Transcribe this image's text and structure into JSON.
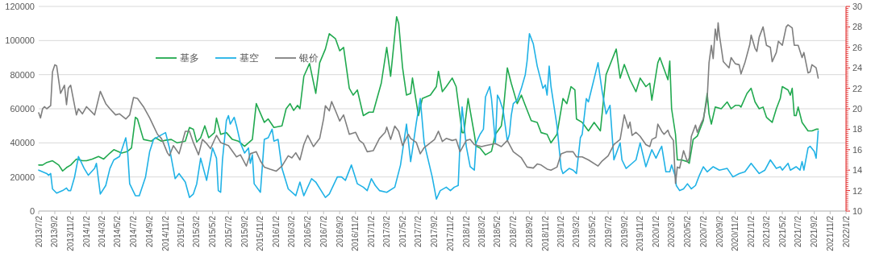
{
  "chart_data": {
    "type": "line",
    "xlim": [
      "2013-07-02",
      "2022-01-02"
    ],
    "xticks": [
      {
        "value": "2013-07-02",
        "label": "2013/7/2"
      },
      {
        "value": "2013-09-02",
        "label": "2013/9/2"
      },
      {
        "value": "2013-11-02",
        "label": "2013/11/2"
      },
      {
        "value": "2014-01-02",
        "label": "2014/1/2"
      },
      {
        "value": "2014-03-02",
        "label": "2014/3/2"
      },
      {
        "value": "2014-05-02",
        "label": "2014/5/2"
      },
      {
        "value": "2014-07-02",
        "label": "2014/7/2"
      },
      {
        "value": "2014-09-02",
        "label": "2014/9/2"
      },
      {
        "value": "2014-11-02",
        "label": "2014/11/2"
      },
      {
        "value": "2015-01-02",
        "label": "2015/1/2"
      },
      {
        "value": "2015-03-02",
        "label": "2015/3/2"
      },
      {
        "value": "2015-05-02",
        "label": "2015/5/2"
      },
      {
        "value": "2015-07-02",
        "label": "2015/7/2"
      },
      {
        "value": "2015-09-02",
        "label": "2015/9/2"
      },
      {
        "value": "2015-11-02",
        "label": "2015/11/2"
      },
      {
        "value": "2016-01-02",
        "label": "2016/1/2"
      },
      {
        "value": "2016-03-02",
        "label": "2016/3/2"
      },
      {
        "value": "2016-05-02",
        "label": "2016/5/2"
      },
      {
        "value": "2016-07-02",
        "label": "2016/7/2"
      },
      {
        "value": "2016-09-02",
        "label": "2016/9/2"
      },
      {
        "value": "2016-11-02",
        "label": "2016/11/2"
      },
      {
        "value": "2017-01-02",
        "label": "2017/1/2"
      },
      {
        "value": "2017-03-02",
        "label": "2017/3/2"
      },
      {
        "value": "2017-05-02",
        "label": "2017/5/2"
      },
      {
        "value": "2017-07-02",
        "label": "2017/7/2"
      },
      {
        "value": "2017-09-02",
        "label": "2017/9/2"
      },
      {
        "value": "2017-11-02",
        "label": "2017/11/2"
      },
      {
        "value": "2018-01-02",
        "label": "2018/1/2"
      },
      {
        "value": "2018-03-02",
        "label": "2018/3/2"
      },
      {
        "value": "2018-05-02",
        "label": "2018/5/2"
      },
      {
        "value": "2018-07-02",
        "label": "2018/7/2"
      },
      {
        "value": "2018-09-02",
        "label": "2018/9/2"
      },
      {
        "value": "2018-11-02",
        "label": "2018/11/2"
      },
      {
        "value": "2019-01-02",
        "label": "2019/1/2"
      },
      {
        "value": "2019-03-02",
        "label": "2019/3/2"
      },
      {
        "value": "2019-05-02",
        "label": "2019/5/2"
      },
      {
        "value": "2019-07-02",
        "label": "2019/7/2"
      },
      {
        "value": "2019-09-02",
        "label": "2019/9/2"
      },
      {
        "value": "2019-11-02",
        "label": "2019/11/2"
      },
      {
        "value": "2020-01-02",
        "label": "2020/1/2"
      },
      {
        "value": "2020-03-02",
        "label": "2020/3/2"
      },
      {
        "value": "2020-05-02",
        "label": "2020/5/2"
      },
      {
        "value": "2020-07-02",
        "label": "2020/7/2"
      },
      {
        "value": "2020-09-02",
        "label": "2020/9/2"
      },
      {
        "value": "2020-11-02",
        "label": "2020/11/2"
      },
      {
        "value": "2021-01-02",
        "label": "2021/1/2"
      },
      {
        "value": "2021-03-02",
        "label": "2021/3/2"
      },
      {
        "value": "2021-05-02",
        "label": "2021/5/2"
      },
      {
        "value": "2021-07-02",
        "label": "2021/7/2"
      },
      {
        "value": "2021-09-02",
        "label": "2021/9/2"
      },
      {
        "value": "2021-11-02",
        "label": "2021/11/2"
      },
      {
        "value": "2022-01-02",
        "label": "2022/1/2"
      }
    ],
    "ylim": [
      0,
      120000
    ],
    "yticks": [
      0,
      20000,
      40000,
      60000,
      80000,
      100000,
      120000
    ],
    "y2lim": [
      10,
      30
    ],
    "y2ticks": [
      10,
      12,
      14,
      16,
      18,
      20,
      22,
      24,
      26,
      28,
      30
    ],
    "grid": "y",
    "legend": "top left",
    "series": [
      {
        "name": "基多",
        "color": "#21a94f",
        "x": [
          "2013-07-02",
          "2013-07-17",
          "2013-08-02",
          "2013-08-24",
          "2013-09-17",
          "2013-10-02",
          "2013-10-17",
          "2013-11-02",
          "2013-11-24",
          "2013-12-17",
          "2014-01-02",
          "2014-01-24",
          "2014-02-17",
          "2014-03-09",
          "2014-04-02",
          "2014-04-17",
          "2014-05-17",
          "2014-06-09",
          "2014-06-24",
          "2014-07-09",
          "2014-07-17",
          "2014-08-09",
          "2014-09-09",
          "2014-09-24",
          "2014-10-17",
          "2014-11-02",
          "2014-11-24",
          "2014-12-17",
          "2015-01-17",
          "2015-02-02",
          "2015-02-17",
          "2015-03-02",
          "2015-03-17",
          "2015-04-02",
          "2015-04-17",
          "2015-05-09",
          "2015-05-17",
          "2015-06-02",
          "2015-06-24",
          "2015-07-17",
          "2015-08-09",
          "2015-09-02",
          "2015-10-02",
          "2015-10-17",
          "2015-11-17",
          "2015-12-02",
          "2015-12-24",
          "2016-01-24",
          "2016-02-09",
          "2016-02-24",
          "2016-03-09",
          "2016-03-24",
          "2016-04-02",
          "2016-04-17",
          "2016-05-09",
          "2016-06-02",
          "2016-06-17",
          "2016-07-09",
          "2016-07-24",
          "2016-08-17",
          "2016-09-02",
          "2016-09-17",
          "2016-10-09",
          "2016-10-24",
          "2016-11-09",
          "2016-12-02",
          "2016-12-24",
          "2017-01-09",
          "2017-02-09",
          "2017-03-02",
          "2017-03-17",
          "2017-04-09",
          "2017-04-17",
          "2017-05-02",
          "2017-05-17",
          "2017-06-02",
          "2017-06-09",
          "2017-07-02",
          "2017-07-17",
          "2017-08-17",
          "2017-09-09",
          "2017-09-17",
          "2017-10-02",
          "2017-10-17",
          "2017-11-09",
          "2017-11-24",
          "2017-12-17",
          "2017-12-24",
          "2018-01-09",
          "2018-02-02",
          "2018-02-09",
          "2018-02-24",
          "2018-03-17",
          "2018-04-09",
          "2018-04-24",
          "2018-05-17",
          "2018-05-24",
          "2018-06-09",
          "2018-06-24",
          "2018-07-17",
          "2018-08-02",
          "2018-08-17",
          "2018-09-09",
          "2018-10-02",
          "2018-10-17",
          "2018-11-09",
          "2018-11-24",
          "2018-12-17",
          "2019-01-09",
          "2019-01-24",
          "2019-02-09",
          "2019-02-24",
          "2019-03-02",
          "2019-03-24",
          "2019-04-17",
          "2019-05-09",
          "2019-06-02",
          "2019-06-24",
          "2019-08-02",
          "2019-08-17",
          "2019-09-02",
          "2019-09-24",
          "2019-10-17",
          "2019-11-02",
          "2019-11-24",
          "2019-12-09",
          "2019-12-17",
          "2020-01-09",
          "2020-01-17",
          "2020-02-17",
          "2020-02-24",
          "2020-03-02",
          "2020-03-17",
          "2020-03-24",
          "2020-04-09",
          "2020-05-02",
          "2020-05-09",
          "2020-05-24",
          "2020-06-09",
          "2020-07-02",
          "2020-07-17",
          "2020-07-24",
          "2020-08-02",
          "2020-08-17",
          "2020-09-09",
          "2020-10-02",
          "2020-10-17",
          "2020-11-02",
          "2020-11-17",
          "2020-11-24",
          "2020-12-17",
          "2021-01-02",
          "2021-01-17",
          "2021-02-02",
          "2021-02-17",
          "2021-03-02",
          "2021-03-24",
          "2021-04-09",
          "2021-04-24",
          "2021-05-02",
          "2021-05-24",
          "2021-06-02",
          "2021-06-09",
          "2021-06-17",
          "2021-06-24",
          "2021-07-02",
          "2021-07-17",
          "2021-08-09",
          "2021-08-24",
          "2021-09-09",
          "2021-09-17"
        ],
        "values": [
          27000,
          27000,
          28500,
          29500,
          27000,
          23500,
          25500,
          27000,
          30500,
          29500,
          29500,
          30500,
          32000,
          30500,
          34000,
          36000,
          34000,
          35000,
          37000,
          55000,
          54000,
          42000,
          41000,
          43000,
          41000,
          41500,
          42000,
          40000,
          41000,
          49000,
          48000,
          40500,
          43000,
          50000,
          43000,
          46000,
          54500,
          45000,
          46000,
          42000,
          41000,
          38000,
          42000,
          63000,
          52000,
          54000,
          49000,
          50000,
          60000,
          63000,
          59000,
          62000,
          60000,
          79000,
          86500,
          69000,
          87000,
          95000,
          104000,
          101000,
          94000,
          96000,
          72000,
          68000,
          71000,
          56000,
          58000,
          58000,
          75000,
          96000,
          79000,
          114000,
          110000,
          84000,
          68000,
          69000,
          78000,
          56000,
          66000,
          68000,
          73000,
          82000,
          70000,
          73000,
          78000,
          73000,
          46000,
          46000,
          66000,
          45000,
          38000,
          37000,
          33000,
          35000,
          45000,
          50000,
          58000,
          84000,
          75000,
          63000,
          68000,
          62000,
          53000,
          52000,
          46000,
          45000,
          40000,
          45000,
          66000,
          63000,
          73000,
          71000,
          54000,
          52000,
          47000,
          52000,
          47000,
          80000,
          95000,
          78000,
          86000,
          77000,
          70000,
          78000,
          73000,
          75000,
          65000,
          87000,
          90000,
          77000,
          88000,
          60000,
          45000,
          30000,
          30000,
          29000,
          28000,
          42000,
          44000,
          53000,
          69000,
          57000,
          51000,
          61000,
          60000,
          64000,
          60000,
          62000,
          62000,
          61000,
          69000,
          72000,
          64000,
          60000,
          61000,
          55000,
          52000,
          60000,
          66000,
          73000,
          71000,
          68000,
          72000,
          56000,
          56000,
          61000,
          52000,
          47000,
          47000,
          48000,
          48000
        ]
      },
      {
        "name": "基空",
        "color": "#20b2e6",
        "x": [
          "2013-07-02",
          "2013-08-02",
          "2013-08-09",
          "2013-08-17",
          "2013-08-24",
          "2013-09-09",
          "2013-10-02",
          "2013-10-17",
          "2013-10-24",
          "2013-11-02",
          "2013-11-17",
          "2013-12-02",
          "2013-12-24",
          "2014-01-09",
          "2014-02-02",
          "2014-02-09",
          "2014-02-24",
          "2014-03-17",
          "2014-04-02",
          "2014-04-17",
          "2014-05-09",
          "2014-06-02",
          "2014-06-09",
          "2014-06-17",
          "2014-07-09",
          "2014-07-24",
          "2014-08-17",
          "2014-09-02",
          "2014-09-17",
          "2014-10-09",
          "2014-11-02",
          "2014-11-17",
          "2014-12-09",
          "2014-12-24",
          "2015-01-17",
          "2015-02-02",
          "2015-02-17",
          "2015-03-02",
          "2015-03-17",
          "2015-04-09",
          "2015-05-02",
          "2015-05-17",
          "2015-05-24",
          "2015-06-02",
          "2015-06-09",
          "2015-06-24",
          "2015-07-02",
          "2015-07-09",
          "2015-07-24",
          "2015-08-02",
          "2015-08-17",
          "2015-09-02",
          "2015-09-17",
          "2015-09-24",
          "2015-10-02",
          "2015-10-09",
          "2015-11-02",
          "2015-11-17",
          "2015-12-02",
          "2015-12-17",
          "2015-12-24",
          "2016-01-09",
          "2016-01-24",
          "2016-02-17",
          "2016-03-17",
          "2016-04-02",
          "2016-04-17",
          "2016-05-17",
          "2016-06-02",
          "2016-07-09",
          "2016-07-24",
          "2016-08-24",
          "2016-09-09",
          "2016-09-24",
          "2016-10-17",
          "2016-11-09",
          "2016-12-02",
          "2016-12-17",
          "2017-01-02",
          "2017-01-17",
          "2017-02-02",
          "2017-03-02",
          "2017-04-02",
          "2017-04-24",
          "2017-05-17",
          "2017-06-02",
          "2017-06-09",
          "2017-06-24",
          "2017-07-09",
          "2017-07-24",
          "2017-08-24",
          "2017-09-09",
          "2017-09-24",
          "2017-10-17",
          "2017-11-02",
          "2017-11-17",
          "2017-12-02",
          "2017-12-09",
          "2017-12-17",
          "2018-01-02",
          "2018-01-17",
          "2018-02-02",
          "2018-02-09",
          "2018-02-24",
          "2018-03-09",
          "2018-03-17",
          "2018-04-02",
          "2018-04-09",
          "2018-04-24",
          "2018-05-02",
          "2018-05-09",
          "2018-05-24",
          "2018-06-09",
          "2018-06-17",
          "2018-06-24",
          "2018-07-02",
          "2018-07-17",
          "2018-08-02",
          "2018-08-17",
          "2018-08-24",
          "2018-09-02",
          "2018-09-17",
          "2018-10-02",
          "2018-10-24",
          "2018-11-02",
          "2018-11-09",
          "2018-11-17",
          "2018-11-24",
          "2018-12-17",
          "2019-01-02",
          "2019-01-09",
          "2019-02-02",
          "2019-02-17",
          "2019-03-02",
          "2019-03-17",
          "2019-03-24",
          "2019-04-09",
          "2019-04-17",
          "2019-05-24",
          "2019-06-09",
          "2019-06-24",
          "2019-07-09",
          "2019-07-24",
          "2019-08-17",
          "2019-08-24",
          "2019-09-09",
          "2019-10-02",
          "2019-10-17",
          "2019-11-02",
          "2019-11-24",
          "2019-12-17",
          "2020-01-02",
          "2020-01-17",
          "2020-01-24",
          "2020-02-09",
          "2020-02-24",
          "2020-03-02",
          "2020-03-17",
          "2020-03-20",
          "2020-04-02",
          "2020-04-17",
          "2020-05-02",
          "2020-05-17",
          "2020-06-02",
          "2020-06-17",
          "2020-07-02",
          "2020-07-17",
          "2020-08-09",
          "2020-09-02",
          "2020-10-02",
          "2020-10-24",
          "2020-11-17",
          "2020-12-09",
          "2021-01-02",
          "2021-02-02",
          "2021-02-24",
          "2021-03-17",
          "2021-04-09",
          "2021-04-24",
          "2021-05-02",
          "2021-05-24",
          "2021-06-02",
          "2021-06-24",
          "2021-07-09",
          "2021-07-17",
          "2021-07-24",
          "2021-08-09",
          "2021-08-17",
          "2021-09-02",
          "2021-09-09",
          "2021-09-17"
        ],
        "values": [
          24000,
          22000,
          21000,
          22000,
          13000,
          10500,
          12000,
          13500,
          12000,
          12000,
          20000,
          32000,
          25000,
          21000,
          25000,
          28000,
          10000,
          15000,
          25000,
          30000,
          32000,
          43000,
          35000,
          16000,
          9000,
          9000,
          20000,
          35000,
          42000,
          44000,
          46000,
          37000,
          19000,
          22000,
          17000,
          8000,
          10000,
          16000,
          31000,
          18000,
          37000,
          31000,
          12000,
          11000,
          30000,
          53000,
          56000,
          51000,
          55000,
          50000,
          40000,
          34000,
          37000,
          28000,
          33000,
          16000,
          11000,
          42000,
          43000,
          48000,
          41000,
          42000,
          25000,
          13000,
          9000,
          17000,
          9000,
          19000,
          17000,
          8000,
          10000,
          20000,
          20000,
          18000,
          27000,
          16000,
          14000,
          12000,
          19000,
          15000,
          12000,
          11000,
          14000,
          27000,
          51000,
          29000,
          36000,
          52000,
          66000,
          40000,
          20000,
          7000,
          12000,
          14000,
          12000,
          14000,
          15000,
          40000,
          61000,
          38000,
          26000,
          24000,
          40000,
          45000,
          48000,
          67000,
          73000,
          66000,
          40000,
          68000,
          66000,
          59000,
          41000,
          45000,
          56000,
          63000,
          65000,
          72000,
          80000,
          88000,
          104000,
          98000,
          85000,
          72000,
          74000,
          68000,
          85000,
          73000,
          50000,
          25000,
          22000,
          25000,
          24000,
          22000,
          43000,
          45000,
          66000,
          64000,
          87000,
          70000,
          57000,
          62000,
          30000,
          40000,
          30000,
          25000,
          28000,
          30000,
          40000,
          26000,
          36000,
          31000,
          36000,
          38000,
          23000,
          23000,
          27000,
          20000,
          15000,
          12000,
          13000,
          16000,
          13000,
          15000,
          21000,
          26000,
          23000,
          26000,
          24000,
          25000,
          20000,
          22000,
          23000,
          28000,
          22000,
          24000,
          30000,
          25000,
          26000,
          24000,
          28000,
          24000,
          26000,
          24000,
          29000,
          24000,
          37000,
          38000,
          35000,
          31000,
          47000
        ]
      },
      {
        "name": "银价",
        "color": "#7f7f7f",
        "axis": "y2",
        "x": [
          "2013-07-02",
          "2013-07-09",
          "2013-07-17",
          "2013-07-24",
          "2013-08-02",
          "2013-08-17",
          "2013-08-24",
          "2013-09-02",
          "2013-09-09",
          "2013-09-24",
          "2013-10-09",
          "2013-10-17",
          "2013-10-24",
          "2013-11-02",
          "2013-11-24",
          "2013-12-02",
          "2013-12-17",
          "2014-01-02",
          "2014-02-02",
          "2014-02-24",
          "2014-03-17",
          "2014-04-02",
          "2014-04-24",
          "2014-05-09",
          "2014-06-02",
          "2014-06-17",
          "2014-07-02",
          "2014-07-17",
          "2014-08-09",
          "2014-09-02",
          "2014-09-17",
          "2014-10-02",
          "2014-10-17",
          "2014-10-24",
          "2014-11-09",
          "2014-11-17",
          "2014-12-02",
          "2014-12-24",
          "2015-01-17",
          "2015-02-02",
          "2015-02-17",
          "2015-03-09",
          "2015-03-24",
          "2015-04-09",
          "2015-04-24",
          "2015-05-17",
          "2015-06-02",
          "2015-07-02",
          "2015-08-02",
          "2015-08-17",
          "2015-09-09",
          "2015-09-24",
          "2015-10-17",
          "2015-11-02",
          "2015-11-17",
          "2015-12-09",
          "2016-01-02",
          "2016-01-24",
          "2016-02-17",
          "2016-03-02",
          "2016-03-17",
          "2016-04-02",
          "2016-04-17",
          "2016-05-02",
          "2016-05-24",
          "2016-06-17",
          "2016-07-02",
          "2016-07-09",
          "2016-07-24",
          "2016-08-02",
          "2016-08-17",
          "2016-09-02",
          "2016-09-17",
          "2016-10-09",
          "2016-11-02",
          "2016-11-17",
          "2016-12-02",
          "2016-12-17",
          "2017-01-09",
          "2017-02-02",
          "2017-02-24",
          "2017-03-02",
          "2017-03-17",
          "2017-04-02",
          "2017-04-17",
          "2017-05-02",
          "2017-05-24",
          "2017-06-02",
          "2017-06-24",
          "2017-07-09",
          "2017-07-24",
          "2017-09-02",
          "2017-09-17",
          "2017-10-02",
          "2017-10-17",
          "2017-11-09",
          "2017-11-24",
          "2017-12-09",
          "2018-01-02",
          "2018-01-17",
          "2018-02-02",
          "2018-03-02",
          "2018-03-17",
          "2018-04-24",
          "2018-05-17",
          "2018-06-09",
          "2018-07-02",
          "2018-08-02",
          "2018-08-24",
          "2018-09-17",
          "2018-10-02",
          "2018-10-17",
          "2018-11-09",
          "2018-11-24",
          "2018-12-17",
          "2019-01-02",
          "2019-01-24",
          "2019-02-17",
          "2019-03-02",
          "2019-03-24",
          "2019-04-17",
          "2019-05-24",
          "2019-06-09",
          "2019-07-02",
          "2019-07-24",
          "2019-08-17",
          "2019-09-02",
          "2019-09-17",
          "2019-09-24",
          "2019-10-02",
          "2019-10-17",
          "2019-11-02",
          "2019-11-24",
          "2019-12-09",
          "2019-12-17",
          "2020-01-02",
          "2020-01-09",
          "2020-01-24",
          "2020-02-02",
          "2020-02-17",
          "2020-02-24",
          "2020-03-09",
          "2020-03-17",
          "2020-03-24",
          "2020-04-02",
          "2020-04-17",
          "2020-05-02",
          "2020-05-09",
          "2020-05-17",
          "2020-06-02",
          "2020-06-09",
          "2020-06-24",
          "2020-07-02",
          "2020-07-17",
          "2020-07-24",
          "2020-08-02",
          "2020-08-09",
          "2020-08-17",
          "2020-08-24",
          "2020-08-28",
          "2020-09-02",
          "2020-09-17",
          "2020-10-09",
          "2020-10-17",
          "2020-11-02",
          "2020-11-17",
          "2020-11-24",
          "2020-12-09",
          "2020-12-28",
          "2021-01-02",
          "2021-01-17",
          "2021-01-24",
          "2021-02-02",
          "2021-02-17",
          "2021-03-02",
          "2021-03-17",
          "2021-03-24",
          "2021-04-09",
          "2021-04-17",
          "2021-05-02",
          "2021-05-17",
          "2021-05-24",
          "2021-06-09",
          "2021-06-17",
          "2021-07-02",
          "2021-07-17",
          "2021-07-24",
          "2021-08-09",
          "2021-08-17",
          "2021-08-24",
          "2021-09-09",
          "2021-09-17"
        ],
        "values": [
          19.6,
          19.1,
          20.0,
          20.2,
          20.0,
          20.3,
          23.6,
          24.3,
          24.2,
          21.5,
          22.3,
          20.4,
          22.0,
          22.3,
          19.4,
          20.0,
          19.5,
          20.2,
          19.4,
          21.7,
          20.5,
          20.0,
          19.4,
          19.5,
          19.0,
          19.4,
          21.1,
          21.0,
          20.2,
          19.1,
          18.3,
          17.5,
          17.1,
          16.7,
          15.7,
          15.4,
          16.4,
          15.6,
          17.8,
          17.8,
          16.7,
          15.5,
          17.0,
          16.6,
          16.1,
          17.4,
          16.7,
          16.4,
          15.3,
          15.5,
          14.4,
          15.6,
          15.8,
          14.9,
          14.3,
          14.1,
          13.9,
          14.4,
          15.4,
          15.2,
          15.7,
          15.0,
          16.5,
          17.4,
          16.3,
          17.1,
          19.0,
          20.3,
          19.8,
          20.7,
          19.8,
          18.8,
          19.4,
          17.5,
          17.7,
          16.9,
          16.6,
          15.8,
          15.9,
          17.1,
          17.7,
          18.2,
          17.0,
          18.3,
          17.8,
          16.4,
          17.5,
          17.1,
          16.7,
          15.6,
          16.2,
          17.0,
          17.8,
          16.8,
          17.1,
          16.9,
          17.0,
          15.8,
          16.9,
          17.0,
          16.5,
          16.3,
          16.4,
          16.6,
          16.3,
          16.9,
          15.8,
          15.2,
          14.3,
          14.2,
          14.6,
          14.5,
          14.1,
          14.0,
          14.3,
          15.6,
          15.8,
          15.8,
          15.3,
          15.3,
          15.0,
          14.4,
          14.9,
          15.4,
          16.5,
          17.0,
          19.4,
          18.1,
          18.7,
          17.4,
          17.7,
          17.3,
          16.5,
          16.3,
          17.0,
          17.2,
          18.5,
          17.8,
          17.5,
          17.9,
          17.4,
          16.9,
          12.7,
          14.3,
          14.2,
          15.9,
          14.8,
          15.2,
          17.3,
          18.4,
          17.7,
          18.6,
          19.0,
          21.0,
          24.5,
          26.2,
          24.9,
          27.8,
          26.7,
          28.4,
          27.2,
          24.6,
          24.0,
          25.0,
          24.4,
          24.3,
          23.4,
          24.5,
          26.3,
          27.2,
          25.9,
          25.6,
          27.0,
          28.0,
          26.2,
          26.0,
          24.6,
          25.5,
          26.6,
          26.2,
          28.0,
          28.2,
          27.9,
          26.2,
          26.2,
          25.0,
          25.5,
          23.5,
          23.6,
          24.3,
          24.0,
          23.0
        ]
      }
    ]
  }
}
